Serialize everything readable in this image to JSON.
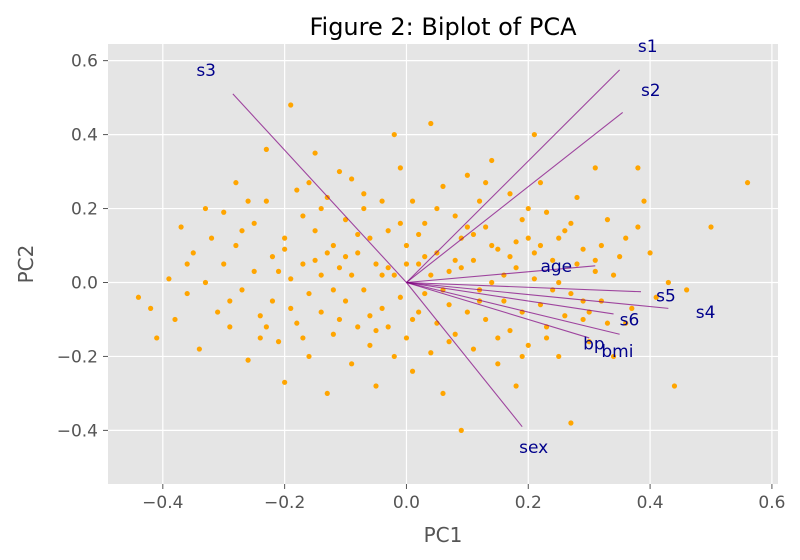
{
  "chart_data": {
    "type": "scatter",
    "title": "Figure 2: Biplot of PCA",
    "xlabel": "PC1",
    "ylabel": "PC2",
    "xlim": [
      -0.49,
      0.61
    ],
    "ylim": [
      -0.545,
      0.645
    ],
    "xticks": [
      -0.4,
      -0.2,
      0.0,
      0.2,
      0.4,
      0.6
    ],
    "yticks": [
      -0.4,
      -0.2,
      0.0,
      0.2,
      0.4,
      0.6
    ],
    "xtick_labels": [
      "−0.4",
      "−0.2",
      "0.0",
      "0.2",
      "0.4",
      "0.6"
    ],
    "ytick_labels": [
      "−0.4",
      "−0.2",
      "0.0",
      "0.2",
      "0.4",
      "0.6"
    ],
    "grid": true,
    "colors": {
      "points": "#FFA500",
      "arrows": "#800080",
      "labels": "#00008B",
      "plot_background": "#E5E5E5",
      "grid": "#FFFFFF"
    },
    "loadings": [
      {
        "name": "age",
        "x": 0.31,
        "y": 0.045,
        "label_x": 0.22,
        "label_y": 0.045
      },
      {
        "name": "sex",
        "x": 0.19,
        "y": -0.39,
        "label_x": 0.185,
        "label_y": -0.445
      },
      {
        "name": "bmi",
        "x": 0.35,
        "y": -0.14,
        "label_x": 0.32,
        "label_y": -0.185
      },
      {
        "name": "bp",
        "x": 0.3,
        "y": -0.15,
        "label_x": 0.29,
        "label_y": -0.165
      },
      {
        "name": "s1",
        "x": 0.35,
        "y": 0.575,
        "label_x": 0.38,
        "label_y": 0.64
      },
      {
        "name": "s2",
        "x": 0.355,
        "y": 0.46,
        "label_x": 0.385,
        "label_y": 0.52
      },
      {
        "name": "s3",
        "x": -0.285,
        "y": 0.51,
        "label_x": -0.345,
        "label_y": 0.575
      },
      {
        "name": "s4",
        "x": 0.43,
        "y": -0.07,
        "label_x": 0.475,
        "label_y": -0.08
      },
      {
        "name": "s5",
        "x": 0.385,
        "y": -0.025,
        "label_x": 0.41,
        "label_y": -0.035
      },
      {
        "name": "s6",
        "x": 0.34,
        "y": -0.085,
        "label_x": 0.35,
        "label_y": -0.1
      }
    ],
    "points": [
      [
        -0.44,
        -0.04
      ],
      [
        -0.41,
        -0.15
      ],
      [
        -0.42,
        -0.07
      ],
      [
        -0.38,
        -0.1
      ],
      [
        -0.39,
        0.01
      ],
      [
        -0.37,
        0.15
      ],
      [
        -0.36,
        -0.03
      ],
      [
        -0.35,
        0.08
      ],
      [
        -0.34,
        -0.18
      ],
      [
        -0.33,
        0.0
      ],
      [
        -0.32,
        0.12
      ],
      [
        -0.31,
        -0.08
      ],
      [
        -0.3,
        0.19
      ],
      [
        -0.3,
        0.05
      ],
      [
        -0.29,
        -0.12
      ],
      [
        -0.28,
        0.27
      ],
      [
        -0.28,
        0.1
      ],
      [
        -0.27,
        -0.02
      ],
      [
        -0.26,
        -0.21
      ],
      [
        -0.25,
        0.16
      ],
      [
        -0.25,
        0.03
      ],
      [
        -0.24,
        -0.09
      ],
      [
        -0.23,
        0.36
      ],
      [
        -0.23,
        0.22
      ],
      [
        -0.22,
        0.07
      ],
      [
        -0.22,
        -0.05
      ],
      [
        -0.21,
        -0.16
      ],
      [
        -0.2,
        0.12
      ],
      [
        -0.2,
        -0.27
      ],
      [
        -0.19,
        0.48
      ],
      [
        -0.19,
        0.01
      ],
      [
        -0.18,
        0.25
      ],
      [
        -0.18,
        -0.11
      ],
      [
        -0.17,
        0.18
      ],
      [
        -0.17,
        0.05
      ],
      [
        -0.16,
        -0.2
      ],
      [
        -0.16,
        -0.03
      ],
      [
        -0.15,
        0.35
      ],
      [
        -0.15,
        0.14
      ],
      [
        -0.14,
        0.02
      ],
      [
        -0.14,
        -0.08
      ],
      [
        -0.13,
        0.23
      ],
      [
        -0.13,
        -0.3
      ],
      [
        -0.12,
        0.1
      ],
      [
        -0.12,
        -0.14
      ],
      [
        -0.11,
        0.3
      ],
      [
        -0.11,
        0.04
      ],
      [
        -0.1,
        -0.05
      ],
      [
        -0.1,
        0.17
      ],
      [
        -0.09,
        -0.22
      ],
      [
        -0.09,
        0.28
      ],
      [
        -0.08,
        0.08
      ],
      [
        -0.08,
        -0.12
      ],
      [
        -0.07,
        0.2
      ],
      [
        -0.07,
        -0.02
      ],
      [
        -0.06,
        0.12
      ],
      [
        -0.06,
        -0.17
      ],
      [
        -0.05,
        0.05
      ],
      [
        -0.05,
        -0.28
      ],
      [
        -0.04,
        0.22
      ],
      [
        -0.04,
        -0.07
      ],
      [
        -0.03,
        0.14
      ],
      [
        -0.03,
        -0.12
      ],
      [
        -0.02,
        0.02
      ],
      [
        -0.02,
        0.4
      ],
      [
        -0.01,
        -0.04
      ],
      [
        -0.01,
        0.31
      ],
      [
        0.0,
        0.1
      ],
      [
        0.0,
        -0.15
      ],
      [
        0.01,
        0.22
      ],
      [
        0.01,
        -0.24
      ],
      [
        0.02,
        0.05
      ],
      [
        0.02,
        -0.08
      ],
      [
        0.03,
        0.16
      ],
      [
        0.03,
        -0.03
      ],
      [
        0.04,
        0.43
      ],
      [
        0.04,
        -0.19
      ],
      [
        0.05,
        0.08
      ],
      [
        0.05,
        -0.11
      ],
      [
        0.06,
        0.26
      ],
      [
        0.06,
        -0.3
      ],
      [
        0.07,
        0.03
      ],
      [
        0.07,
        -0.06
      ],
      [
        0.08,
        0.18
      ],
      [
        0.08,
        -0.14
      ],
      [
        0.09,
        0.12
      ],
      [
        0.09,
        -0.4
      ],
      [
        0.1,
        0.29
      ],
      [
        0.1,
        -0.08
      ],
      [
        0.11,
        0.06
      ],
      [
        0.11,
        -0.18
      ],
      [
        0.12,
        0.22
      ],
      [
        0.12,
        -0.02
      ],
      [
        0.13,
        0.15
      ],
      [
        0.13,
        -0.1
      ],
      [
        0.14,
        0.33
      ],
      [
        0.14,
        0.0
      ],
      [
        0.15,
        -0.22
      ],
      [
        0.15,
        0.09
      ],
      [
        0.16,
        -0.05
      ],
      [
        0.17,
        0.24
      ],
      [
        0.17,
        -0.13
      ],
      [
        0.18,
        0.04
      ],
      [
        0.18,
        -0.28
      ],
      [
        0.19,
        0.17
      ],
      [
        0.19,
        -0.08
      ],
      [
        0.2,
        0.12
      ],
      [
        0.2,
        -0.17
      ],
      [
        0.21,
        0.4
      ],
      [
        0.21,
        0.01
      ],
      [
        0.22,
        -0.06
      ],
      [
        0.22,
        0.27
      ],
      [
        0.23,
        -0.12
      ],
      [
        0.23,
        0.19
      ],
      [
        0.24,
        0.06
      ],
      [
        0.25,
        -0.2
      ],
      [
        0.25,
        0.0
      ],
      [
        0.26,
        0.14
      ],
      [
        0.27,
        -0.03
      ],
      [
        0.27,
        -0.38
      ],
      [
        0.28,
        0.23
      ],
      [
        0.29,
        -0.1
      ],
      [
        0.29,
        0.09
      ],
      [
        0.3,
        -0.16
      ],
      [
        0.31,
        0.03
      ],
      [
        0.31,
        0.31
      ],
      [
        0.32,
        -0.05
      ],
      [
        0.33,
        0.17
      ],
      [
        0.34,
        -0.2
      ],
      [
        0.35,
        0.07
      ],
      [
        0.36,
        0.12
      ],
      [
        0.37,
        -0.07
      ],
      [
        0.38,
        0.31
      ],
      [
        0.39,
        0.22
      ],
      [
        0.4,
        0.08
      ],
      [
        0.41,
        -0.04
      ],
      [
        0.43,
        0.0
      ],
      [
        0.44,
        -0.28
      ],
      [
        0.46,
        -0.02
      ],
      [
        0.5,
        0.15
      ],
      [
        0.56,
        0.27
      ],
      [
        -0.33,
        0.2
      ],
      [
        -0.27,
        0.14
      ],
      [
        -0.24,
        -0.15
      ],
      [
        -0.21,
        0.03
      ],
      [
        -0.19,
        -0.07
      ],
      [
        -0.16,
        0.27
      ],
      [
        -0.14,
        0.2
      ],
      [
        -0.12,
        -0.02
      ],
      [
        -0.1,
        0.07
      ],
      [
        -0.08,
        0.13
      ],
      [
        -0.06,
        -0.09
      ],
      [
        -0.04,
        0.02
      ],
      [
        -0.02,
        -0.2
      ],
      [
        0.0,
        0.05
      ],
      [
        0.02,
        0.13
      ],
      [
        0.04,
        0.02
      ],
      [
        0.06,
        -0.02
      ],
      [
        0.08,
        0.06
      ],
      [
        0.1,
        0.15
      ],
      [
        0.12,
        -0.05
      ],
      [
        0.14,
        0.1
      ],
      [
        0.16,
        0.02
      ],
      [
        0.18,
        0.11
      ],
      [
        0.2,
        0.2
      ],
      [
        0.22,
        0.1
      ],
      [
        0.24,
        -0.02
      ],
      [
        0.26,
        -0.09
      ],
      [
        0.28,
        0.05
      ],
      [
        0.3,
        -0.08
      ],
      [
        0.32,
        0.1
      ],
      [
        0.34,
        0.02
      ],
      [
        0.36,
        -0.11
      ],
      [
        0.38,
        0.15
      ],
      [
        -0.36,
        0.05
      ],
      [
        -0.29,
        -0.05
      ],
      [
        -0.26,
        0.22
      ],
      [
        -0.23,
        -0.12
      ],
      [
        -0.2,
        0.09
      ],
      [
        -0.17,
        -0.15
      ],
      [
        -0.15,
        0.06
      ],
      [
        -0.13,
        0.08
      ],
      [
        -0.11,
        -0.1
      ],
      [
        -0.09,
        0.02
      ],
      [
        -0.07,
        0.24
      ],
      [
        -0.05,
        -0.13
      ],
      [
        -0.03,
        0.04
      ],
      [
        -0.01,
        0.16
      ],
      [
        0.01,
        -0.1
      ],
      [
        0.03,
        0.07
      ],
      [
        0.05,
        0.2
      ],
      [
        0.07,
        -0.16
      ],
      [
        0.09,
        0.04
      ],
      [
        0.11,
        0.13
      ],
      [
        0.13,
        0.27
      ],
      [
        0.15,
        -0.15
      ],
      [
        0.17,
        0.07
      ],
      [
        0.19,
        -0.2
      ],
      [
        0.21,
        0.08
      ],
      [
        0.23,
        -0.15
      ],
      [
        0.25,
        0.12
      ],
      [
        0.27,
        0.16
      ],
      [
        0.29,
        -0.05
      ],
      [
        0.31,
        0.06
      ],
      [
        0.33,
        -0.11
      ]
    ]
  }
}
